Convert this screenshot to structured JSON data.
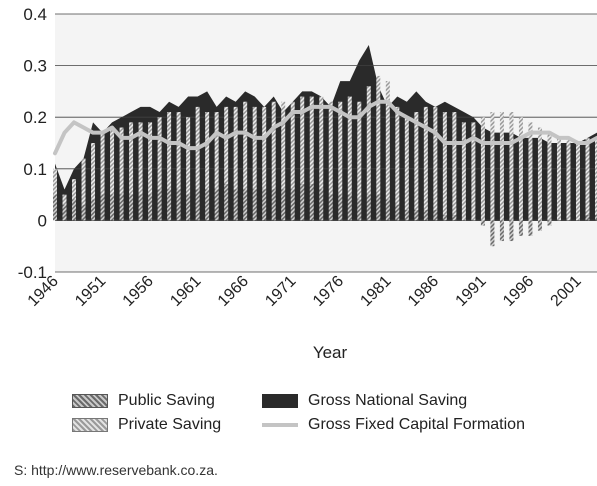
{
  "chart_data": {
    "type": "bar",
    "title": "",
    "xlabel": "Year",
    "ylabel": "",
    "ylim": [
      -0.1,
      0.4
    ],
    "yticks": [
      "0.4",
      "0.3",
      "0.2",
      "0.1",
      "0",
      "-0.1"
    ],
    "yticks_values": [
      0.4,
      0.3,
      0.2,
      0.1,
      0,
      -0.1
    ],
    "xtick_labels": [
      "1946",
      "1951",
      "1956",
      "1961",
      "1966",
      "1971",
      "1976",
      "1981",
      "1986",
      "1991",
      "1996",
      "2001"
    ],
    "grid": true,
    "legend_placement": "bottom",
    "x": [
      1946,
      1947,
      1948,
      1949,
      1950,
      1951,
      1952,
      1953,
      1954,
      1955,
      1956,
      1957,
      1958,
      1959,
      1960,
      1961,
      1962,
      1963,
      1964,
      1965,
      1966,
      1967,
      1968,
      1969,
      1970,
      1971,
      1972,
      1973,
      1974,
      1975,
      1976,
      1977,
      1978,
      1979,
      1980,
      1981,
      1982,
      1983,
      1984,
      1985,
      1986,
      1987,
      1988,
      1989,
      1990,
      1991,
      1992,
      1993,
      1994,
      1995,
      1996,
      1997,
      1998,
      1999,
      2000,
      2001,
      2002,
      2003
    ],
    "series": [
      {
        "name": "Public Saving",
        "kind": "bar",
        "color": "#8a8a8a",
        "values": [
          0.05,
          0.03,
          0.04,
          0.03,
          0.04,
          0.05,
          0.05,
          0.05,
          0.05,
          0.05,
          0.05,
          0.06,
          0.06,
          0.06,
          0.05,
          0.06,
          0.06,
          0.06,
          0.07,
          0.06,
          0.06,
          0.06,
          0.06,
          0.06,
          0.06,
          0.06,
          0.07,
          0.07,
          0.06,
          0.05,
          0.05,
          0.05,
          0.04,
          0.05,
          0.05,
          0.04,
          0.03,
          0.02,
          0.02,
          0.02,
          0.02,
          0.01,
          0.01,
          0.0,
          0.0,
          -0.01,
          -0.05,
          -0.04,
          -0.04,
          -0.03,
          -0.03,
          -0.02,
          -0.01,
          0.0,
          0.0,
          0.0,
          0.01,
          0.01
        ]
      },
      {
        "name": "Private Saving",
        "kind": "bar",
        "color": "#b8b8b8",
        "values": [
          0.05,
          0.02,
          0.04,
          0.09,
          0.11,
          0.12,
          0.13,
          0.13,
          0.14,
          0.14,
          0.14,
          0.14,
          0.15,
          0.15,
          0.15,
          0.16,
          0.15,
          0.15,
          0.15,
          0.16,
          0.17,
          0.16,
          0.16,
          0.17,
          0.17,
          0.17,
          0.17,
          0.17,
          0.18,
          0.18,
          0.18,
          0.19,
          0.19,
          0.21,
          0.23,
          0.23,
          0.19,
          0.18,
          0.19,
          0.2,
          0.2,
          0.2,
          0.2,
          0.19,
          0.19,
          0.2,
          0.21,
          0.21,
          0.21,
          0.2,
          0.19,
          0.18,
          0.17,
          0.16,
          0.16,
          0.15,
          0.15,
          0.15
        ]
      },
      {
        "name": "Gross National Saving",
        "kind": "area",
        "color": "#2a2a2a",
        "values": [
          0.11,
          0.06,
          0.1,
          0.12,
          0.19,
          0.17,
          0.19,
          0.2,
          0.21,
          0.22,
          0.22,
          0.21,
          0.23,
          0.22,
          0.24,
          0.24,
          0.25,
          0.22,
          0.24,
          0.23,
          0.25,
          0.24,
          0.22,
          0.24,
          0.21,
          0.23,
          0.25,
          0.25,
          0.24,
          0.22,
          0.27,
          0.27,
          0.31,
          0.34,
          0.26,
          0.22,
          0.24,
          0.23,
          0.25,
          0.23,
          0.22,
          0.23,
          0.22,
          0.21,
          0.2,
          0.18,
          0.17,
          0.17,
          0.17,
          0.16,
          0.16,
          0.16,
          0.15,
          0.15,
          0.15,
          0.15,
          0.16,
          0.17
        ]
      },
      {
        "name": "Gross Fixed Capital Formation",
        "kind": "line",
        "color": "#c4c4c4",
        "values": [
          0.13,
          0.17,
          0.19,
          0.18,
          0.17,
          0.17,
          0.18,
          0.16,
          0.16,
          0.17,
          0.16,
          0.16,
          0.15,
          0.15,
          0.14,
          0.14,
          0.15,
          0.17,
          0.16,
          0.17,
          0.17,
          0.16,
          0.16,
          0.18,
          0.19,
          0.21,
          0.21,
          0.22,
          0.22,
          0.22,
          0.21,
          0.2,
          0.2,
          0.22,
          0.23,
          0.23,
          0.21,
          0.2,
          0.19,
          0.18,
          0.17,
          0.15,
          0.15,
          0.15,
          0.16,
          0.15,
          0.15,
          0.15,
          0.15,
          0.16,
          0.17,
          0.17,
          0.17,
          0.16,
          0.16,
          0.15,
          0.15,
          0.16
        ]
      }
    ]
  },
  "legend": {
    "public_saving": "Public Saving",
    "gross_national_saving": "Gross National Saving",
    "private_saving": "Private Saving",
    "gfcf": "Gross Fixed Capital Formation"
  },
  "source_text": "S:  http://www.reservebank.co.za.",
  "colors": {
    "area": "#2a2a2a",
    "public_bar": "#8a8a8a",
    "private_bar": "#b8b8b8",
    "gfcf_line": "#c4c4c4",
    "plot_bg": "#f4f4f4",
    "grid": "#404040"
  }
}
